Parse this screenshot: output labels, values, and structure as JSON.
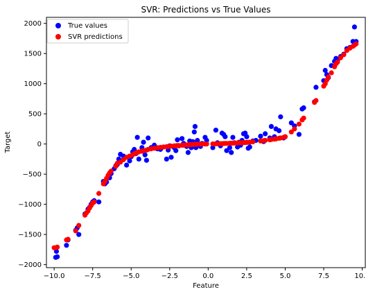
{
  "chart_data": {
    "type": "scatter",
    "title": "SVR: Predictions vs True Values",
    "xlabel": "Feature",
    "ylabel": "Target",
    "xlim": [
      -10.5,
      10.2
    ],
    "ylim": [
      -2050,
      2100
    ],
    "x_ticks": [
      -10.0,
      -7.5,
      -5.0,
      -2.5,
      0.0,
      2.5,
      5.0,
      7.5,
      10.0
    ],
    "x_tick_labels": [
      "−10.0",
      "−7.5",
      "−5.0",
      "−2.5",
      "0.0",
      "2.5",
      "5.0",
      "7.5",
      "10.0"
    ],
    "y_ticks": [
      -2000,
      -1500,
      -1000,
      -500,
      0,
      500,
      1000,
      1500,
      2000
    ],
    "y_tick_labels": [
      "−2000",
      "−1500",
      "−1000",
      "−500",
      "0",
      "500",
      "1000",
      "1500",
      "2000"
    ],
    "grid": false,
    "legend_position": "top-left",
    "series": [
      {
        "name": "True values",
        "color": "#0000ff",
        "points": [
          [
            -9.9,
            -1880
          ],
          [
            -9.8,
            -1870
          ],
          [
            -9.85,
            -1780
          ],
          [
            -9.2,
            -1680
          ],
          [
            -9.1,
            -1590
          ],
          [
            -8.6,
            -1430
          ],
          [
            -8.5,
            -1390
          ],
          [
            -8.4,
            -1500
          ],
          [
            -8.0,
            -1160
          ],
          [
            -7.8,
            -1080
          ],
          [
            -7.7,
            -1050
          ],
          [
            -7.6,
            -1000
          ],
          [
            -7.5,
            -960
          ],
          [
            -7.4,
            -940
          ],
          [
            -7.1,
            -960
          ],
          [
            -6.8,
            -620
          ],
          [
            -6.7,
            -660
          ],
          [
            -6.6,
            -630
          ],
          [
            -6.4,
            -560
          ],
          [
            -6.3,
            -490
          ],
          [
            -6.1,
            -410
          ],
          [
            -6.0,
            -360
          ],
          [
            -5.9,
            -340
          ],
          [
            -5.8,
            -250
          ],
          [
            -5.7,
            -170
          ],
          [
            -5.5,
            -200
          ],
          [
            -5.3,
            -350
          ],
          [
            -5.1,
            -280
          ],
          [
            -5.0,
            -210
          ],
          [
            -4.9,
            -130
          ],
          [
            -4.8,
            -90
          ],
          [
            -4.7,
            -160
          ],
          [
            -4.6,
            110
          ],
          [
            -4.5,
            -250
          ],
          [
            -4.3,
            -60
          ],
          [
            -4.2,
            30
          ],
          [
            -4.1,
            -180
          ],
          [
            -4.0,
            -270
          ],
          [
            -3.9,
            100
          ],
          [
            -3.7,
            -60
          ],
          [
            -3.5,
            -20
          ],
          [
            -3.3,
            -80
          ],
          [
            -3.1,
            -90
          ],
          [
            -2.9,
            -50
          ],
          [
            -2.7,
            -250
          ],
          [
            -2.6,
            -100
          ],
          [
            -2.5,
            -30
          ],
          [
            -2.4,
            -220
          ],
          [
            -2.2,
            -60
          ],
          [
            -2.1,
            -110
          ],
          [
            -2.0,
            70
          ],
          [
            -1.9,
            -30
          ],
          [
            -1.7,
            90
          ],
          [
            -1.6,
            10
          ],
          [
            -1.4,
            -40
          ],
          [
            -1.3,
            -140
          ],
          [
            -1.2,
            50
          ],
          [
            -1.1,
            -60
          ],
          [
            -1.0,
            40
          ],
          [
            -0.9,
            200
          ],
          [
            -0.85,
            290
          ],
          [
            -0.8,
            -60
          ],
          [
            -0.7,
            60
          ],
          [
            -0.5,
            -40
          ],
          [
            -0.4,
            10
          ],
          [
            -0.2,
            110
          ],
          [
            -0.1,
            60
          ],
          [
            0.3,
            -60
          ],
          [
            0.5,
            230
          ],
          [
            0.6,
            20
          ],
          [
            0.8,
            -30
          ],
          [
            0.9,
            180
          ],
          [
            1.0,
            160
          ],
          [
            1.1,
            120
          ],
          [
            1.2,
            -110
          ],
          [
            1.4,
            -60
          ],
          [
            1.5,
            -140
          ],
          [
            1.6,
            110
          ],
          [
            1.7,
            20
          ],
          [
            1.9,
            -50
          ],
          [
            2.0,
            30
          ],
          [
            2.1,
            -20
          ],
          [
            2.2,
            60
          ],
          [
            2.3,
            170
          ],
          [
            2.4,
            180
          ],
          [
            2.5,
            120
          ],
          [
            2.6,
            -70
          ],
          [
            2.7,
            -50
          ],
          [
            2.9,
            50
          ],
          [
            3.1,
            60
          ],
          [
            3.4,
            130
          ],
          [
            3.6,
            40
          ],
          [
            3.7,
            170
          ],
          [
            4.0,
            100
          ],
          [
            4.1,
            290
          ],
          [
            4.3,
            120
          ],
          [
            4.4,
            250
          ],
          [
            4.6,
            220
          ],
          [
            4.7,
            450
          ],
          [
            4.9,
            100
          ],
          [
            5.0,
            120
          ],
          [
            5.4,
            350
          ],
          [
            5.6,
            300
          ],
          [
            5.9,
            160
          ],
          [
            6.1,
            580
          ],
          [
            6.2,
            600
          ],
          [
            6.9,
            700
          ],
          [
            7.0,
            940
          ],
          [
            7.5,
            1050
          ],
          [
            7.6,
            1220
          ],
          [
            7.7,
            1150
          ],
          [
            7.8,
            1100
          ],
          [
            8.0,
            1300
          ],
          [
            8.2,
            1370
          ],
          [
            8.3,
            1420
          ],
          [
            8.4,
            1390
          ],
          [
            8.6,
            1450
          ],
          [
            8.8,
            1490
          ],
          [
            9.0,
            1580
          ],
          [
            9.2,
            1600
          ],
          [
            9.4,
            1700
          ],
          [
            9.5,
            1940
          ],
          [
            9.6,
            1700
          ]
        ]
      },
      {
        "name": "SVR predictions",
        "color": "#ff0000",
        "points": [
          [
            -10.0,
            -1720
          ],
          [
            -9.9,
            -1720
          ],
          [
            -9.8,
            -1710
          ],
          [
            -9.2,
            -1590
          ],
          [
            -9.1,
            -1580
          ],
          [
            -8.6,
            -1440
          ],
          [
            -8.4,
            -1350
          ],
          [
            -8.0,
            -1180
          ],
          [
            -7.9,
            -1140
          ],
          [
            -7.8,
            -1110
          ],
          [
            -7.7,
            -1060
          ],
          [
            -7.6,
            -1020
          ],
          [
            -7.5,
            -980
          ],
          [
            -7.4,
            -960
          ],
          [
            -7.1,
            -820
          ],
          [
            -6.8,
            -660
          ],
          [
            -6.7,
            -620
          ],
          [
            -6.6,
            -570
          ],
          [
            -6.5,
            -520
          ],
          [
            -6.4,
            -480
          ],
          [
            -6.3,
            -450
          ],
          [
            -6.0,
            -370
          ],
          [
            -5.9,
            -320
          ],
          [
            -5.7,
            -300
          ],
          [
            -5.5,
            -260
          ],
          [
            -5.3,
            -220
          ],
          [
            -5.1,
            -200
          ],
          [
            -4.9,
            -180
          ],
          [
            -4.8,
            -160
          ],
          [
            -4.7,
            -150
          ],
          [
            -4.6,
            -140
          ],
          [
            -4.5,
            -130
          ],
          [
            -4.3,
            -120
          ],
          [
            -4.2,
            -110
          ],
          [
            -4.0,
            -100
          ],
          [
            -3.9,
            -90
          ],
          [
            -3.7,
            -80
          ],
          [
            -3.5,
            -70
          ],
          [
            -3.3,
            -60
          ],
          [
            -3.1,
            -55
          ],
          [
            -2.9,
            -50
          ],
          [
            -2.7,
            -45
          ],
          [
            -2.6,
            -40
          ],
          [
            -2.5,
            -40
          ],
          [
            -2.4,
            -35
          ],
          [
            -2.2,
            -30
          ],
          [
            -2.1,
            -30
          ],
          [
            -2.0,
            -25
          ],
          [
            -1.9,
            -25
          ],
          [
            -1.7,
            -20
          ],
          [
            -1.6,
            -20
          ],
          [
            -1.4,
            -15
          ],
          [
            -1.3,
            -15
          ],
          [
            -1.2,
            -10
          ],
          [
            -1.1,
            -10
          ],
          [
            -1.0,
            -8
          ],
          [
            -0.9,
            -6
          ],
          [
            -0.8,
            -4
          ],
          [
            -0.7,
            -3
          ],
          [
            -0.5,
            -2
          ],
          [
            -0.4,
            -1
          ],
          [
            -0.2,
            0
          ],
          [
            -0.1,
            0
          ],
          [
            0.3,
            2
          ],
          [
            0.5,
            3
          ],
          [
            0.6,
            4
          ],
          [
            0.8,
            5
          ],
          [
            0.9,
            6
          ],
          [
            1.0,
            8
          ],
          [
            1.1,
            10
          ],
          [
            1.2,
            10
          ],
          [
            1.4,
            12
          ],
          [
            1.5,
            14
          ],
          [
            1.6,
            15
          ],
          [
            1.7,
            16
          ],
          [
            1.9,
            18
          ],
          [
            2.0,
            20
          ],
          [
            2.1,
            20
          ],
          [
            2.2,
            22
          ],
          [
            2.3,
            24
          ],
          [
            2.4,
            25
          ],
          [
            2.5,
            26
          ],
          [
            2.6,
            28
          ],
          [
            2.7,
            30
          ],
          [
            2.9,
            35
          ],
          [
            3.4,
            50
          ],
          [
            3.6,
            55
          ],
          [
            3.7,
            60
          ],
          [
            4.0,
            70
          ],
          [
            4.1,
            75
          ],
          [
            4.3,
            80
          ],
          [
            4.4,
            85
          ],
          [
            4.6,
            95
          ],
          [
            4.7,
            100
          ],
          [
            4.9,
            110
          ],
          [
            5.0,
            120
          ],
          [
            5.4,
            200
          ],
          [
            5.6,
            250
          ],
          [
            5.9,
            330
          ],
          [
            6.1,
            400
          ],
          [
            6.2,
            430
          ],
          [
            6.9,
            690
          ],
          [
            7.0,
            720
          ],
          [
            7.5,
            960
          ],
          [
            7.6,
            1000
          ],
          [
            7.7,
            1060
          ],
          [
            7.8,
            1110
          ],
          [
            8.0,
            1180
          ],
          [
            8.2,
            1280
          ],
          [
            8.3,
            1330
          ],
          [
            8.4,
            1360
          ],
          [
            8.6,
            1430
          ],
          [
            8.8,
            1480
          ],
          [
            9.0,
            1550
          ],
          [
            9.2,
            1590
          ],
          [
            9.4,
            1620
          ],
          [
            9.5,
            1640
          ],
          [
            9.6,
            1660
          ]
        ]
      }
    ]
  }
}
